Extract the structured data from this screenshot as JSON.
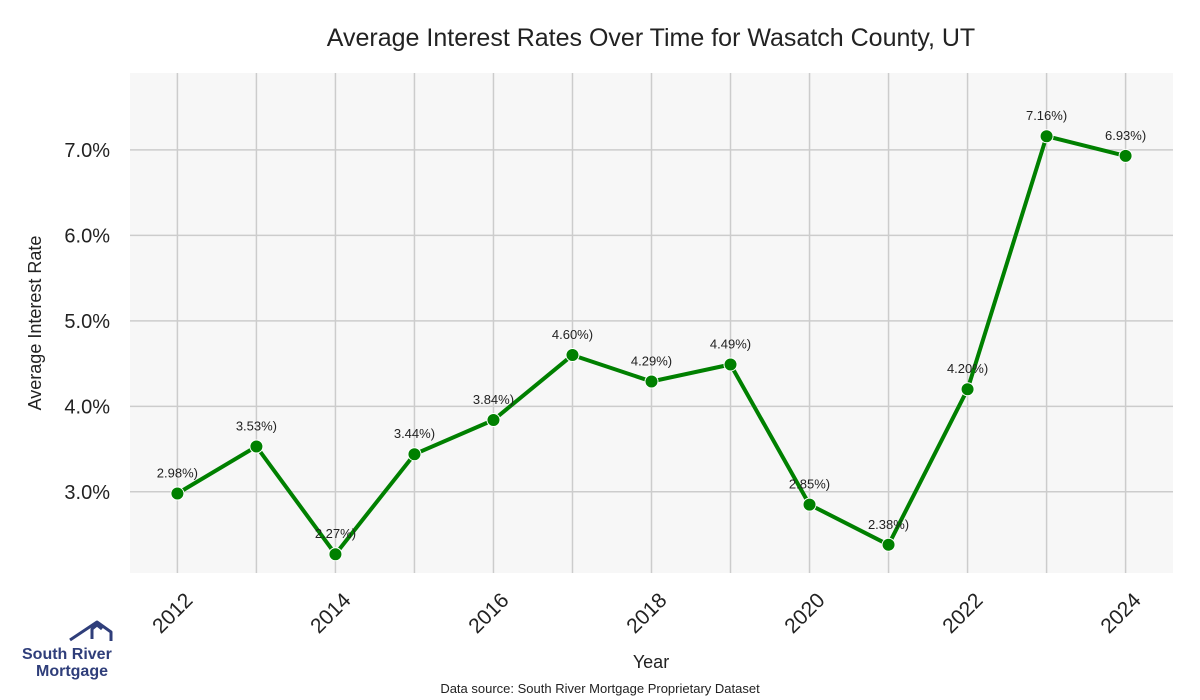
{
  "chart_data": {
    "type": "line",
    "title": "Average Interest Rates Over Time for Wasatch County, UT",
    "xlabel": "Year",
    "ylabel": "Average Interest Rate",
    "x": [
      2012,
      2013,
      2014,
      2015,
      2016,
      2017,
      2018,
      2019,
      2020,
      2021,
      2022,
      2023,
      2024
    ],
    "values": [
      2.98,
      3.53,
      2.27,
      3.44,
      3.84,
      4.6,
      4.29,
      4.49,
      2.85,
      2.38,
      4.2,
      7.16,
      6.93
    ],
    "data_labels": [
      "2.98%)",
      "3.53%)",
      "2.27%)",
      "3.44%)",
      "3.84%)",
      "4.60%)",
      "4.29%)",
      "4.49%)",
      "2.85%)",
      "2.38%)",
      "4.20%)",
      "7.16%)",
      "6.93%)"
    ],
    "x_ticks": [
      "2012",
      "2014",
      "2016",
      "2018",
      "2020",
      "2022",
      "2024"
    ],
    "y_ticks": [
      "3.0%",
      "4.0%",
      "5.0%",
      "6.0%",
      "7.0%"
    ],
    "ylim": [
      2.05,
      7.9
    ],
    "xlim": [
      2011.4,
      2024.6
    ],
    "grid": true,
    "line_color": "#008000",
    "background_color": "#f7f7f7",
    "grid_color": "#cccccc"
  },
  "source_note": "Data source: South River Mortgage Proprietary Dataset",
  "logo": {
    "line1": "South River",
    "line2": "Mortgage",
    "icon": "house-roof-icon"
  }
}
